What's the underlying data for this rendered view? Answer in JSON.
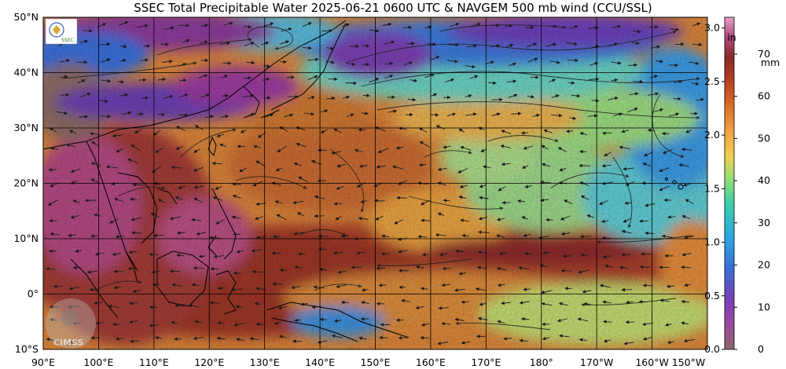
{
  "title": "SSEC Total Precipitable Water  2025-06-21 0600 UTC & NAVGEM 500 mb wind (CCU/SSL)",
  "map": {
    "lon_range": [
      90,
      210
    ],
    "lat_range": [
      -10,
      50
    ],
    "lat_labels": [
      "50°N",
      "40°N",
      "30°N",
      "20°N",
      "10°N",
      "0°",
      "10°S"
    ],
    "lat_values": [
      50,
      40,
      30,
      20,
      10,
      0,
      -10
    ],
    "lon_labels": [
      "90°E",
      "100°E",
      "110°E",
      "120°E",
      "130°E",
      "140°E",
      "150°E",
      "160°E",
      "170°E",
      "180°",
      "170°W",
      "160°W",
      "150°W"
    ],
    "lon_values": [
      90,
      100,
      110,
      120,
      130,
      140,
      150,
      160,
      170,
      180,
      190,
      200,
      210
    ]
  },
  "colorbar": {
    "unit_in": "in",
    "unit_mm": "mm",
    "in_labels": [
      "3.0",
      "2.5",
      "2.0",
      "1.5",
      "1.0",
      "0.5",
      "0.0"
    ],
    "in_values": [
      3.0,
      2.5,
      2.0,
      1.5,
      1.0,
      0.5,
      0.0
    ],
    "mm_labels": [
      "70",
      "60",
      "50",
      "40",
      "30",
      "20",
      "10",
      "0"
    ],
    "mm_values": [
      70,
      60,
      50,
      40,
      30,
      20,
      10,
      0
    ],
    "colors": [
      "#8a6a63",
      "#9a3d9e",
      "#6a3fb0",
      "#3a6ed8",
      "#2ba8d8",
      "#3dc8a8",
      "#8fe07a",
      "#d8d860",
      "#f0b040",
      "#e07a25",
      "#c04a20",
      "#902828",
      "#b04a7a",
      "#e090c0"
    ]
  },
  "logos": {
    "top_left": "SSEC",
    "bottom_left": "CIMSS"
  },
  "palette": {
    "ocean_warm": "#d88a3a",
    "ocean_hot": "#9a3a2a",
    "dry_purple": "#7a3a9a",
    "dry_blue": "#3f6ed8",
    "cyan": "#49c0d8",
    "green": "#8cd88a",
    "coast": "#000000",
    "wind": "#1a1a1a"
  }
}
